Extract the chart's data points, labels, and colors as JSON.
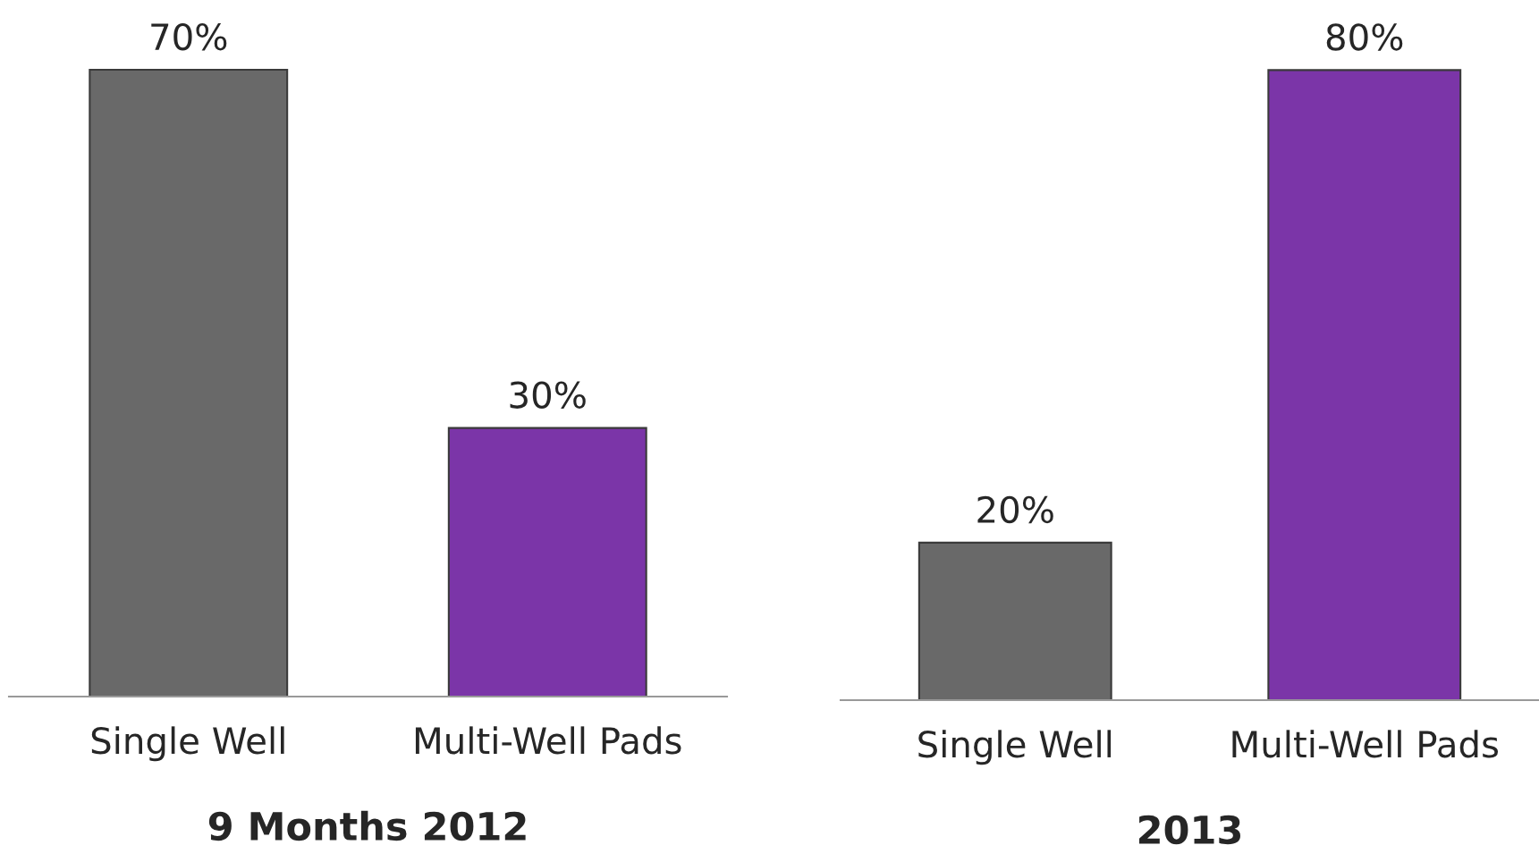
{
  "chart_data": [
    {
      "type": "bar",
      "xlabel": "9 Months 2012",
      "categories": [
        "Single Well",
        "Multi-Well Pads"
      ],
      "values": [
        70,
        30
      ],
      "colors": [
        "#696969",
        "#7b35a8"
      ],
      "value_labels": [
        "70%",
        "30%"
      ]
    },
    {
      "type": "bar",
      "xlabel": "2013",
      "categories": [
        "Single Well",
        "Multi-Well Pads"
      ],
      "values": [
        20,
        80
      ],
      "colors": [
        "#696969",
        "#7b35a8"
      ],
      "value_labels": [
        "20%",
        "80%"
      ]
    }
  ]
}
